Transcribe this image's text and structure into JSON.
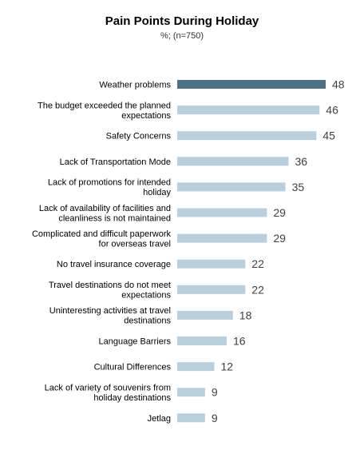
{
  "chart_data": {
    "type": "bar",
    "orientation": "horizontal",
    "title": "Pain Points During Holiday",
    "subtitle": "%; (n=750)",
    "categories": [
      "Weather problems",
      "The budget exceeded the planned expectations",
      "Safety Concerns",
      "Lack of Transportation Mode",
      "Lack of promotions for intended holiday",
      "Lack of availability of facilities and cleanliness is not maintained",
      "Complicated and difficult paperwork for overseas travel",
      "No travel insurance coverage",
      "Travel destinations  do not meet expectations",
      "Uninteresting activities at travel destinations",
      "Language Barriers",
      "Cultural Differences",
      "Lack of variety of souvenirs from holiday destinations",
      "Jetlag"
    ],
    "label_lines": [
      [
        "Weather problems"
      ],
      [
        "The budget exceeded the planned",
        "expectations"
      ],
      [
        "Safety Concerns"
      ],
      [
        "Lack of Transportation Mode"
      ],
      [
        "Lack of promotions for intended",
        "holiday"
      ],
      [
        "Lack of availability of facilities and",
        "cleanliness is not maintained"
      ],
      [
        "Complicated and difficult paperwork",
        "for overseas travel"
      ],
      [
        "No travel insurance coverage"
      ],
      [
        "Travel destinations  do not meet",
        "expectations"
      ],
      [
        "Uninteresting activities at travel",
        "destinations"
      ],
      [
        "Language Barriers"
      ],
      [
        "Cultural Differences"
      ],
      [
        "Lack of variety of souvenirs from",
        "holiday destinations"
      ],
      [
        "Jetlag"
      ]
    ],
    "values": [
      48,
      46,
      45,
      36,
      35,
      29,
      29,
      22,
      22,
      18,
      16,
      12,
      9,
      9
    ],
    "highlight_index": 0,
    "xlim": [
      0,
      48
    ],
    "grid": false,
    "legend": "none",
    "colors": {
      "highlight": "#4d7089",
      "default": "#b9cfde",
      "label": "#000000",
      "value": "#404040"
    }
  }
}
